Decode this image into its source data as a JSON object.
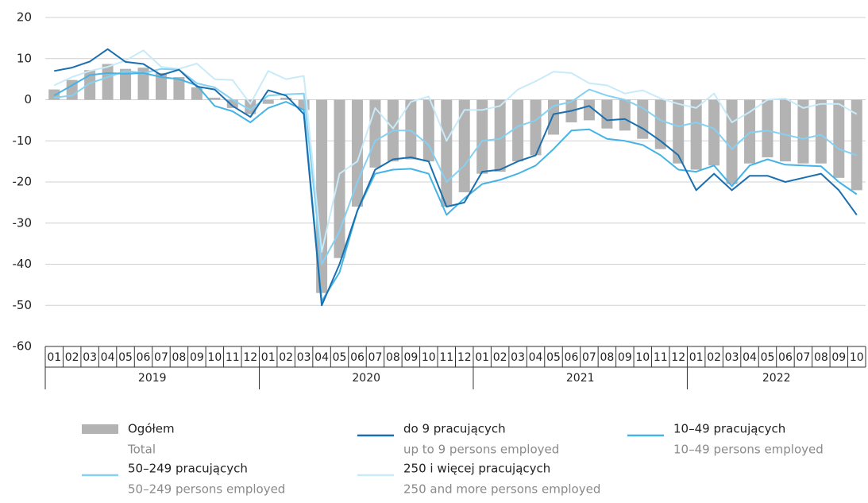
{
  "chart_data": {
    "type": "bar-line",
    "categories": [
      "01",
      "02",
      "03",
      "04",
      "05",
      "06",
      "07",
      "08",
      "09",
      "10",
      "11",
      "12",
      "01",
      "02",
      "03",
      "04",
      "05",
      "06",
      "07",
      "08",
      "09",
      "10",
      "11",
      "12",
      "01",
      "02",
      "03",
      "04",
      "05",
      "06",
      "07",
      "08",
      "09",
      "10",
      "11",
      "12",
      "01",
      "02",
      "03",
      "04",
      "05",
      "06",
      "07",
      "08",
      "09",
      "10"
    ],
    "years": [
      {
        "label": "2019",
        "count": 12
      },
      {
        "label": "2020",
        "count": 12
      },
      {
        "label": "2021",
        "count": 12
      },
      {
        "label": "2022",
        "count": 10
      }
    ],
    "ylim": [
      -60,
      20
    ],
    "yticks": [
      -60,
      -50,
      -40,
      -30,
      -20,
      -10,
      0,
      10,
      20
    ],
    "grid": true,
    "series": [
      {
        "name": "Ogółem",
        "name_en": "Total",
        "kind": "bar",
        "color": "#b3b3b3",
        "values": [
          2.5,
          4.8,
          7.2,
          8.7,
          7.5,
          7.8,
          6.5,
          5.5,
          3,
          0.5,
          -2,
          -3.5,
          -1,
          0.5,
          -2.5,
          -47,
          -38.5,
          -26,
          -16.5,
          -15,
          -14.5,
          -15,
          -26,
          -22.5,
          -18,
          -17.5,
          -15,
          -13.5,
          -8.5,
          -5.5,
          -5,
          -7,
          -7.5,
          -9.5,
          -12,
          -15.5,
          -17,
          -16,
          -20.5,
          -15.5,
          -14,
          -15,
          -15.5,
          -15.5,
          -19,
          -22
        ]
      },
      {
        "name": "do 9 pracujących",
        "name_en": "up to 9 persons employed",
        "kind": "line",
        "color": "#1a6faf",
        "values": [
          7,
          7.8,
          9.3,
          12.3,
          9.2,
          8.7,
          6,
          7.3,
          3.2,
          2.5,
          -1.5,
          -4.2,
          2.3,
          1,
          -3.5,
          -50,
          -40,
          -27,
          -17,
          -14.5,
          -14,
          -15,
          -26,
          -25,
          -17.5,
          -17,
          -15,
          -13.5,
          -3.5,
          -2.7,
          -1.5,
          -5,
          -4.7,
          -7,
          -10,
          -13.5,
          -22,
          -18,
          -22,
          -18.5,
          -18.5,
          -20,
          -19,
          -18,
          -22,
          -28
        ]
      },
      {
        "name": "10–49 pracujących",
        "name_en": "10–49 persons employed",
        "kind": "line",
        "color": "#45b3e6",
        "values": [
          1,
          3.5,
          6,
          6.5,
          6.3,
          6.5,
          5.5,
          5,
          3.5,
          -1.5,
          -2.8,
          -5.5,
          -2,
          -0.5,
          -2.5,
          -49,
          -42,
          -27,
          -18,
          -17,
          -16.8,
          -18,
          -28,
          -24,
          -20.5,
          -19.5,
          -18,
          -16,
          -12,
          -7.5,
          -7.2,
          -9.5,
          -10,
          -11,
          -13.5,
          -17,
          -17.5,
          -16,
          -21,
          -16,
          -14.5,
          -15.8,
          -16,
          -16.2,
          -20,
          -23
        ]
      },
      {
        "name": "50–249 pracujących",
        "name_en": "50–249 persons employed",
        "kind": "line",
        "color": "#86d0f2",
        "values": [
          0.5,
          1,
          4,
          5.5,
          7,
          6.5,
          7.5,
          7.3,
          4,
          3,
          0,
          -2.5,
          1,
          1.3,
          1.5,
          -40,
          -32,
          -20,
          -10,
          -7.5,
          -7.5,
          -11,
          -20,
          -16,
          -10,
          -9.5,
          -6.5,
          -5,
          -1.5,
          -0.5,
          2.5,
          1,
          0,
          -2,
          -5,
          -6.5,
          -5.5,
          -7,
          -12,
          -8,
          -7.5,
          -8.5,
          -9.5,
          -8.5,
          -12,
          -13.5
        ]
      },
      {
        "name": "250 i więcej pracujących",
        "name_en": "250 and more persons employed",
        "kind": "line",
        "color": "#c8eaf9",
        "values": [
          3.5,
          5.5,
          7,
          8,
          9.5,
          12,
          8,
          7.5,
          8.8,
          5,
          4.8,
          -1,
          7,
          5,
          5.8,
          -37,
          -18,
          -15,
          -2,
          -7,
          -0.5,
          0.8,
          -10,
          -2.5,
          -2.5,
          -1.5,
          2.5,
          4.5,
          6.8,
          6.5,
          4,
          3.5,
          1.5,
          2.3,
          0.3,
          -1,
          -2,
          1.5,
          -5.5,
          -3,
          0,
          0.3,
          -2,
          -1,
          -1,
          -3.5
        ]
      }
    ]
  }
}
